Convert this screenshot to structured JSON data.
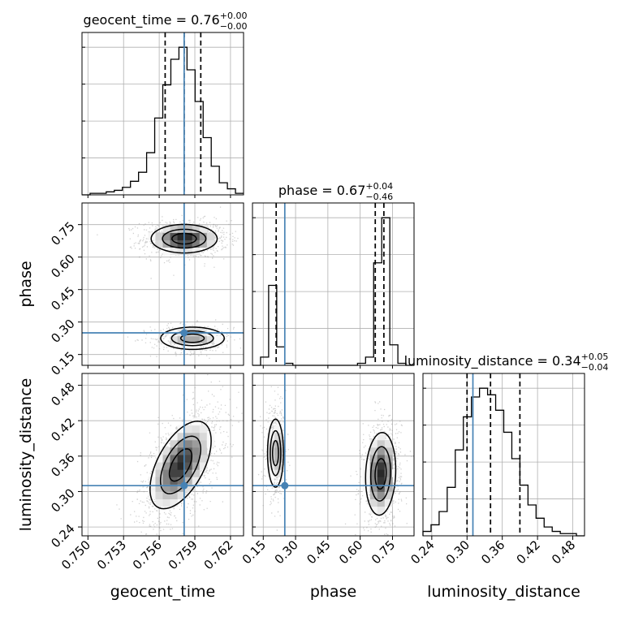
{
  "chart_data": {
    "type": "corner",
    "parameters": [
      "geocent_time",
      "phase",
      "luminosity_distance"
    ],
    "truth": {
      "geocent_time": 0.7581,
      "phase": 0.25,
      "luminosity_distance": 0.31
    },
    "axes": {
      "geocent_time": {
        "lim": [
          0.7495,
          0.7631
        ],
        "ticks": [
          "0.750",
          "0.753",
          "0.756",
          "0.759",
          "0.762"
        ],
        "tick_values": [
          0.75,
          0.753,
          0.756,
          0.759,
          0.762
        ]
      },
      "phase": {
        "lim": [
          0.1,
          0.85
        ],
        "ticks": [
          "0.15",
          "0.30",
          "0.45",
          "0.60",
          "0.75"
        ],
        "tick_values": [
          0.15,
          0.3,
          0.45,
          0.6,
          0.75
        ]
      },
      "luminosity_distance": {
        "lim": [
          0.225,
          0.5
        ],
        "ticks": [
          "0.24",
          "0.30",
          "0.36",
          "0.42",
          "0.48"
        ],
        "tick_values": [
          0.24,
          0.3,
          0.36,
          0.42,
          0.48
        ]
      }
    },
    "titles": [
      {
        "param": "geocent_time",
        "text": "geocent_time = 0.76",
        "plus": "+0.00",
        "minus": "−0.00"
      },
      {
        "param": "phase",
        "text": "phase = 0.67",
        "plus": "+0.04",
        "minus": "−0.46"
      },
      {
        "param": "luminosity_distance",
        "text": "luminosity_distance = 0.34",
        "plus": "+0.05",
        "minus": "−0.04"
      }
    ],
    "quantiles": {
      "geocent_time": [
        0.7565,
        0.7581,
        0.7595
      ],
      "phase": [
        0.21,
        0.67,
        0.71
      ],
      "luminosity_distance": [
        0.3,
        0.34,
        0.39
      ]
    },
    "histograms": {
      "geocent_time": {
        "edges_start": 0.7495,
        "bin_width": 0.00068,
        "counts": [
          0,
          1,
          1,
          2,
          3,
          5,
          9,
          15,
          28,
          51,
          73,
          90,
          98,
          83,
          62,
          38,
          19,
          8,
          4,
          1
        ]
      },
      "phase": {
        "edges_start": 0.1,
        "bin_width": 0.0375,
        "counts": [
          0,
          4,
          39,
          9,
          1,
          0,
          0,
          0,
          0,
          0,
          0,
          0,
          0,
          1,
          4,
          50,
          72,
          10,
          1,
          0
        ]
      },
      "luminosity_distance": {
        "edges_start": 0.225,
        "bin_width": 0.01375,
        "counts": [
          2,
          5,
          11,
          22,
          39,
          54,
          63,
          67,
          64,
          57,
          47,
          35,
          23,
          14,
          8,
          4,
          2,
          1,
          1,
          0
        ]
      }
    },
    "contour_panels": [
      {
        "x": "geocent_time",
        "y": "phase",
        "modes": [
          {
            "cx": 0.7581,
            "cy": 0.685,
            "sx": 0.00135,
            "sy": 0.032,
            "rho": 0.0,
            "weight": 1.0
          },
          {
            "cx": 0.7588,
            "cy": 0.225,
            "sx": 0.0013,
            "sy": 0.025,
            "rho": 0.0,
            "weight": 0.45
          }
        ]
      },
      {
        "x": "geocent_time",
        "y": "luminosity_distance",
        "modes": [
          {
            "cx": 0.7578,
            "cy": 0.345,
            "sx": 0.00125,
            "sy": 0.036,
            "rho": 0.55,
            "weight": 1.0
          }
        ]
      },
      {
        "x": "phase",
        "y": "luminosity_distance",
        "modes": [
          {
            "cx": 0.207,
            "cy": 0.365,
            "sx": 0.018,
            "sy": 0.028,
            "rho": 0.0,
            "weight": 0.55
          },
          {
            "cx": 0.695,
            "cy": 0.33,
            "sx": 0.034,
            "sy": 0.034,
            "rho": 0.1,
            "weight": 1.0
          }
        ]
      }
    ],
    "grid": true,
    "colors": {
      "hist": "#000000",
      "truth": "#4682b4",
      "points": "#9a9a9a",
      "density": "#000000"
    }
  }
}
